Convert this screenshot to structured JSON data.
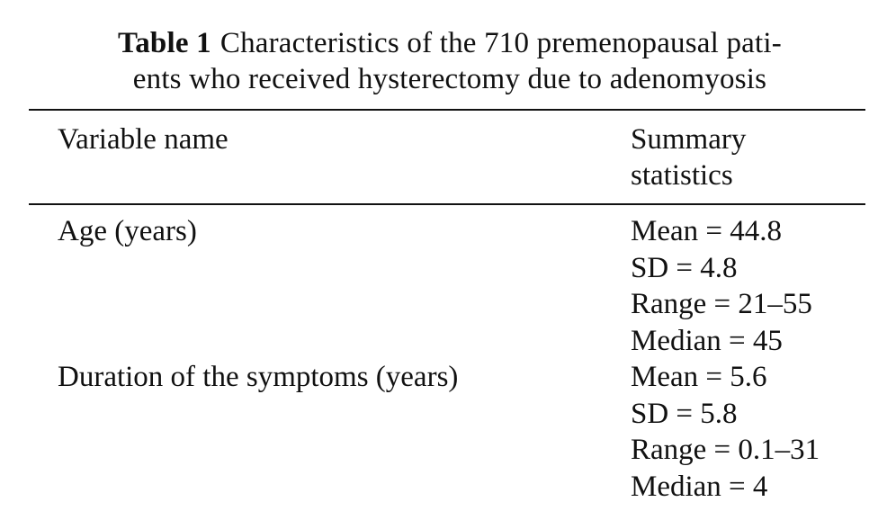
{
  "table": {
    "label": "Table 1",
    "caption_line1": "Characteristics of the 710 premenopausal pati-",
    "caption_line2": "ents who received hysterectomy due to adenomyosis",
    "headers": {
      "variable": "Variable name",
      "summary_line1": "Summary",
      "summary_line2": "statistics"
    },
    "rows": [
      {
        "name": "Age (years)",
        "stats": [
          "Mean = 44.8",
          "SD = 4.8",
          "Range = 21–55",
          "Median = 45"
        ]
      },
      {
        "name": "Duration of the symptoms (years)",
        "stats": [
          "Mean = 5.6",
          "SD = 5.8",
          "Range = 0.1–31",
          "Median = 4"
        ]
      }
    ]
  }
}
